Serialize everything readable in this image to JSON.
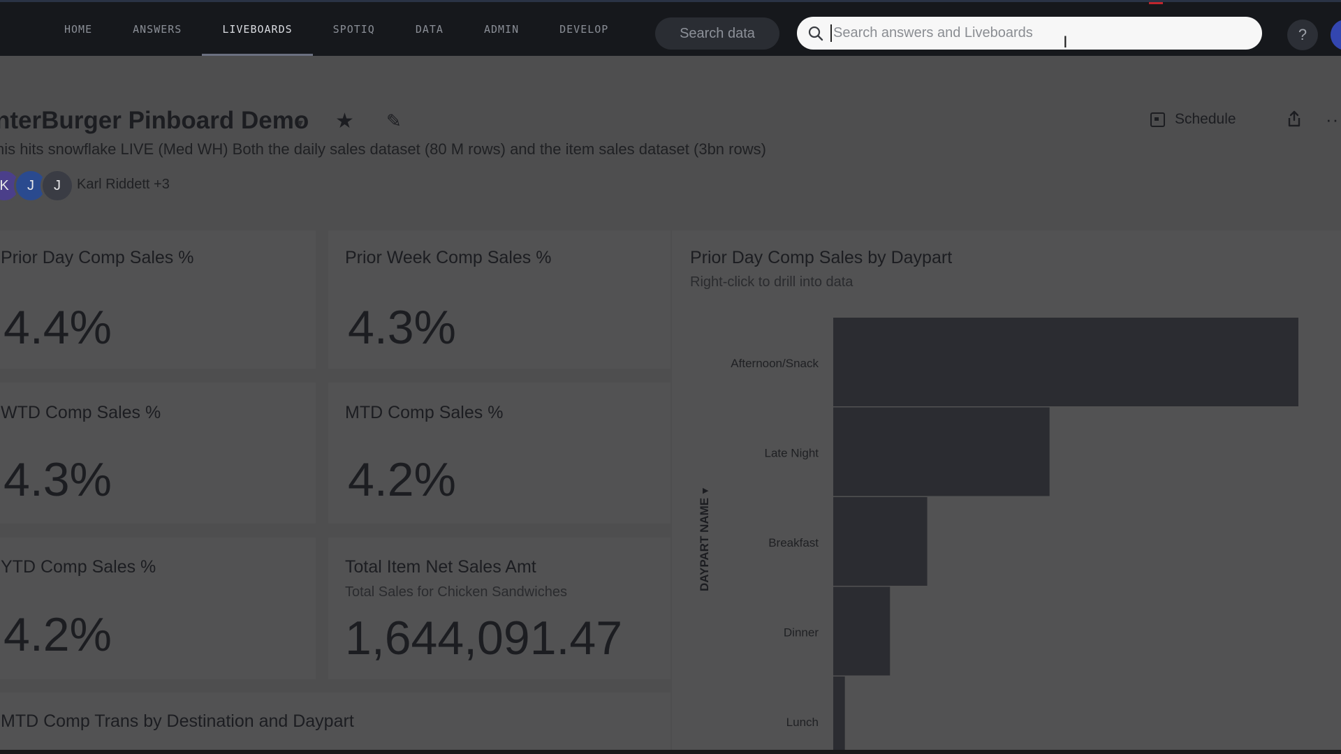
{
  "nav": {
    "items": [
      "HOME",
      "ANSWERS",
      "LIVEBOARDS",
      "SPOTIQ",
      "DATA",
      "ADMIN",
      "DEVELOP"
    ],
    "active": "LIVEBOARDS",
    "search_data_label": "Search data",
    "search_placeholder": "Search answers and Liveboards",
    "help_label": "?"
  },
  "header": {
    "title": "nterBurger Pinboard Demo",
    "description": "his hits snowflake LIVE (Med WH) Both the daily sales dataset (80 M rows) and the item sales dataset (3bn rows)",
    "avatars": [
      "K",
      "J",
      "J"
    ],
    "owners_text": "Karl Riddett +3",
    "schedule_label": "Schedule",
    "more_label": "···"
  },
  "kpis": [
    {
      "title": "Prior Day Comp Sales %",
      "value": "4.4%"
    },
    {
      "title": "Prior Week Comp Sales %",
      "value": "4.3%"
    },
    {
      "title": "WTD Comp Sales %",
      "value": "4.3%"
    },
    {
      "title": "MTD Comp Sales %",
      "value": "4.2%"
    },
    {
      "title": "YTD Comp Sales %",
      "value": "4.2%"
    },
    {
      "title": "Total Item Net Sales Amt",
      "subtitle": "Total Sales for Chicken Sandwiches",
      "value": "1,644,091.47"
    }
  ],
  "bottom_tile": {
    "title": "MTD Comp Trans by Destination and Daypart"
  },
  "chart_data": {
    "type": "bar",
    "orientation": "horizontal",
    "title": "Prior Day Comp Sales by Daypart",
    "subtitle": "Right-click to drill into data",
    "ylabel": "DAYPART NAME",
    "categories": [
      "Afternoon/Snack",
      "Late Night",
      "Breakfast",
      "Dinner",
      "Lunch"
    ],
    "values": [
      100,
      46.5,
      20.2,
      12.2,
      2.5
    ],
    "bar_color": "#2b2c31"
  }
}
